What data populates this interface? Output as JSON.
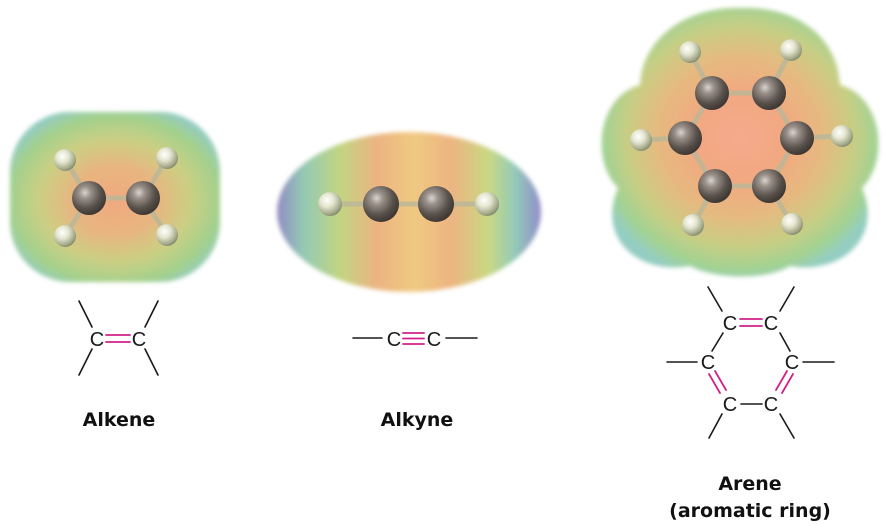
{
  "figure": {
    "molecules": [
      {
        "id": "alkene",
        "caption": "Alkene",
        "atoms": [
          "C",
          "C"
        ]
      },
      {
        "id": "alkyne",
        "caption": "Alkyne",
        "atoms": [
          "C",
          "C"
        ]
      },
      {
        "id": "arene",
        "caption_line1": "Arene",
        "caption_line2": "(aromatic ring)",
        "atoms": [
          "C",
          "C",
          "C",
          "C",
          "C",
          "C"
        ]
      }
    ],
    "colors": {
      "multiple_bond": "#d1208a",
      "single_bond": "#1a1a1a",
      "carbon_atom": "#5a524c",
      "hydrogen_atom": "#e4e6cf"
    }
  }
}
